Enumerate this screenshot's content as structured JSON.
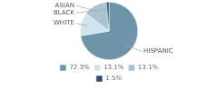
{
  "chart_data": {
    "type": "pie",
    "categories": [
      "HISPANIC",
      "WHITE",
      "ASIAN",
      "BLACK"
    ],
    "values": [
      72.3,
      13.1,
      13.1,
      1.5
    ],
    "value_labels": [
      "72.3%",
      "13.1%",
      "13.1%",
      "1.5%"
    ],
    "colors": [
      "#6d94a8",
      "#d0e4ed",
      "#a8c4d2",
      "#2b4f6e"
    ],
    "legend": "bottom"
  }
}
